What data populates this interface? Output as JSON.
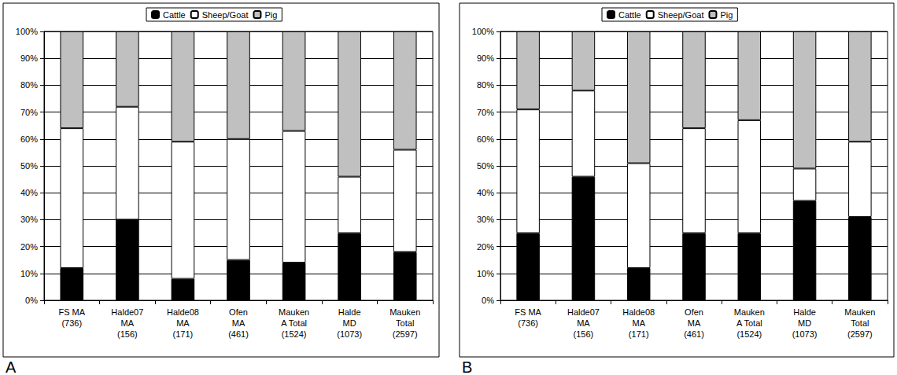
{
  "chart_data": [
    {
      "type": "bar",
      "title": "A",
      "stacked": true,
      "grid": true,
      "legend": "top",
      "categories": [
        "FS MA\n(736)",
        "Halde07\nMA\n(156)",
        "Halde08\nMA\n(171)",
        "Ofen\nMA\n(461)",
        "Mauken\nA Total\n(1524)",
        "Halde\nMD\n(1073)",
        "Mauken\nTotal\n(2597)"
      ],
      "series": [
        {
          "name": "Cattle",
          "color": "#000000",
          "values": [
            12,
            30,
            8,
            15,
            14,
            25,
            18
          ]
        },
        {
          "name": "Sheep/Goat",
          "color": "#ffffff",
          "values": [
            52,
            42,
            51,
            45,
            49,
            21,
            38
          ]
        },
        {
          "name": "Pig",
          "color": "#c0c0c0",
          "values": [
            36,
            28,
            41,
            40,
            37,
            54,
            44
          ]
        }
      ],
      "ylim": [
        0,
        100
      ],
      "yticks": [
        {
          "value": 0,
          "label": "0%"
        },
        {
          "value": 10,
          "label": "10%"
        },
        {
          "value": 20,
          "label": "20%"
        },
        {
          "value": 30,
          "label": "30%"
        },
        {
          "value": 40,
          "label": "40%"
        },
        {
          "value": 50,
          "label": "50%"
        },
        {
          "value": 60,
          "label": "60%"
        },
        {
          "value": 70,
          "label": "70%"
        },
        {
          "value": 80,
          "label": "80%"
        },
        {
          "value": 90,
          "label": "90%"
        },
        {
          "value": 100,
          "label": "100%"
        }
      ]
    },
    {
      "type": "bar",
      "title": "B",
      "stacked": true,
      "grid": true,
      "legend": "top",
      "categories": [
        "FS MA\n(736)",
        "Halde07\nMA\n(156)",
        "Halde08\nMA\n(171)",
        "Ofen\nMA\n(461)",
        "Mauken\nA Total\n(1524)",
        "Halde\nMD\n(1073)",
        "Mauken\nTotal\n(2597)"
      ],
      "series": [
        {
          "name": "Cattle",
          "color": "#000000",
          "values": [
            25,
            46,
            12,
            25,
            25,
            37,
            31
          ]
        },
        {
          "name": "Sheep/Goat",
          "color": "#ffffff",
          "values": [
            46,
            32,
            39,
            39,
            42,
            12,
            28
          ]
        },
        {
          "name": "Pig",
          "color": "#c0c0c0",
          "values": [
            29,
            22,
            49,
            36,
            33,
            51,
            41
          ]
        }
      ],
      "ylim": [
        0,
        100
      ],
      "yticks": [
        {
          "value": 0,
          "label": "0%"
        },
        {
          "value": 10,
          "label": "10%"
        },
        {
          "value": 20,
          "label": "20%"
        },
        {
          "value": 30,
          "label": "30%"
        },
        {
          "value": 40,
          "label": "40%"
        },
        {
          "value": 50,
          "label": "50%"
        },
        {
          "value": 60,
          "label": "60%"
        },
        {
          "value": 70,
          "label": "70%"
        },
        {
          "value": 80,
          "label": "80%"
        },
        {
          "value": 90,
          "label": "90%"
        },
        {
          "value": 100,
          "label": "100%"
        }
      ]
    }
  ]
}
